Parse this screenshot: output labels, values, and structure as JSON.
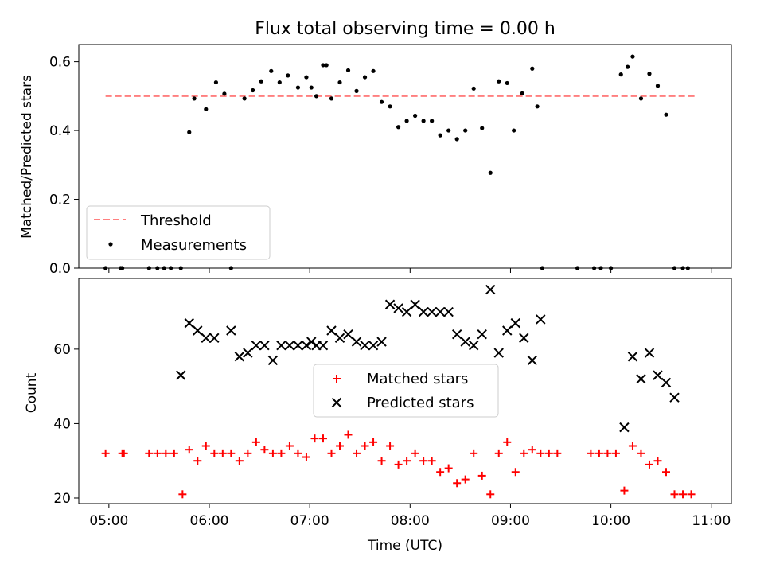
{
  "chart_data": [
    {
      "type": "scatter",
      "title": "Flux total observing time = 0.00 h",
      "xlabel": "",
      "ylabel": "Matched/Predicted stars",
      "ylim": [
        0.0,
        0.65
      ],
      "xlim": [
        "04:42",
        "11:12"
      ],
      "y_ticks": [
        "0.0",
        "0.2",
        "0.4",
        "0.6"
      ],
      "legend_position": "lower-left",
      "grid": false,
      "threshold": {
        "name": "Threshold",
        "y": 0.5,
        "x": [
          "04:58",
          "10:50"
        ],
        "color": "#ff7f7f",
        "style": "dashed"
      },
      "series": [
        {
          "name": "Measurements",
          "color": "#000000",
          "marker": "dot",
          "x": [
            "04:58",
            "05:07",
            "05:08",
            "05:24",
            "05:29",
            "05:33",
            "05:37",
            "05:43",
            "05:48",
            "05:51",
            "05:58",
            "06:04",
            "06:09",
            "06:13",
            "06:21",
            "06:26",
            "06:31",
            "06:37",
            "06:42",
            "06:47",
            "06:53",
            "06:58",
            "07:01",
            "07:04",
            "07:08",
            "07:10",
            "07:13",
            "07:18",
            "07:23",
            "07:28",
            "07:33",
            "07:38",
            "07:43",
            "07:48",
            "07:53",
            "07:58",
            "08:03",
            "08:08",
            "08:13",
            "08:18",
            "08:23",
            "08:28",
            "08:33",
            "08:38",
            "08:43",
            "08:48",
            "08:53",
            "08:58",
            "09:02",
            "09:07",
            "09:13",
            "09:16",
            "09:19",
            "09:40",
            "09:50",
            "09:54",
            "10:00",
            "10:06",
            "10:10",
            "10:13",
            "10:18",
            "10:23",
            "10:28",
            "10:33",
            "10:38",
            "10:43",
            "10:46"
          ],
          "y": [
            0.0,
            0.0,
            0.0,
            0.0,
            0.0,
            0.0,
            0.0,
            0.0,
            0.395,
            0.493,
            0.462,
            0.54,
            0.507,
            0.0,
            0.493,
            0.517,
            0.543,
            0.573,
            0.54,
            0.56,
            0.525,
            0.555,
            0.525,
            0.5,
            0.59,
            0.59,
            0.493,
            0.54,
            0.575,
            0.515,
            0.555,
            0.573,
            0.483,
            0.47,
            0.41,
            0.428,
            0.443,
            0.428,
            0.428,
            0.386,
            0.4,
            0.375,
            0.4,
            0.522,
            0.407,
            0.277,
            0.543,
            0.538,
            0.4,
            0.508,
            0.58,
            0.47,
            0.0,
            0.0,
            0.0,
            0.0,
            0.0,
            0.563,
            0.585,
            0.615,
            0.493,
            0.565,
            0.53,
            0.446,
            0.0,
            0.0,
            0.0
          ]
        }
      ]
    },
    {
      "type": "scatter",
      "title": "",
      "xlabel": "Time (UTC)",
      "ylabel": "Count",
      "ylim": [
        18.5,
        79
      ],
      "xlim": [
        "04:42",
        "11:12"
      ],
      "y_ticks": [
        "20",
        "40",
        "60"
      ],
      "x_ticks": [
        "05:00",
        "06:00",
        "07:00",
        "08:00",
        "09:00",
        "10:00",
        "11:00"
      ],
      "legend_position": "center",
      "grid": false,
      "series": [
        {
          "name": "Matched stars",
          "color": "#ff0000",
          "marker": "plus",
          "x": [
            "04:58",
            "05:08",
            "05:09",
            "05:24",
            "05:29",
            "05:34",
            "05:39",
            "05:44",
            "05:48",
            "05:53",
            "05:58",
            "06:03",
            "06:08",
            "06:13",
            "06:18",
            "06:23",
            "06:28",
            "06:33",
            "06:38",
            "06:43",
            "06:48",
            "06:53",
            "06:58",
            "07:03",
            "07:08",
            "07:13",
            "07:18",
            "07:23",
            "07:28",
            "07:33",
            "07:38",
            "07:43",
            "07:48",
            "07:53",
            "07:58",
            "08:03",
            "08:08",
            "08:13",
            "08:18",
            "08:23",
            "08:28",
            "08:33",
            "08:38",
            "08:43",
            "08:48",
            "08:53",
            "08:58",
            "09:03",
            "09:08",
            "09:13",
            "09:18",
            "09:23",
            "09:28",
            "09:48",
            "09:53",
            "09:58",
            "10:03",
            "10:08",
            "10:13",
            "10:18",
            "10:23",
            "10:28",
            "10:33",
            "10:38",
            "10:43",
            "10:48"
          ],
          "y": [
            32,
            32,
            32,
            32,
            32,
            32,
            32,
            21,
            33,
            30,
            34,
            32,
            32,
            32,
            30,
            32,
            35,
            33,
            32,
            32,
            34,
            32,
            31,
            36,
            36,
            32,
            34,
            37,
            32,
            34,
            35,
            30,
            34,
            29,
            30,
            32,
            30,
            30,
            27,
            28,
            24,
            25,
            32,
            26,
            21,
            32,
            35,
            27,
            32,
            33,
            32,
            32,
            32,
            32,
            32,
            32,
            32,
            22,
            34,
            32,
            29,
            30,
            27,
            21,
            21,
            21
          ]
        },
        {
          "name": "Predicted stars",
          "color": "#000000",
          "marker": "x",
          "x": [
            "05:43",
            "05:48",
            "05:53",
            "05:58",
            "06:03",
            "06:13",
            "06:18",
            "06:23",
            "06:28",
            "06:33",
            "06:38",
            "06:43",
            "06:48",
            "06:53",
            "06:58",
            "07:01",
            "07:04",
            "07:08",
            "07:13",
            "07:18",
            "07:23",
            "07:28",
            "07:33",
            "07:38",
            "07:43",
            "07:48",
            "07:53",
            "07:58",
            "08:03",
            "08:08",
            "08:13",
            "08:18",
            "08:23",
            "08:28",
            "08:33",
            "08:38",
            "08:43",
            "08:48",
            "08:53",
            "08:58",
            "09:03",
            "09:08",
            "09:13",
            "09:18",
            "10:08",
            "10:13",
            "10:18",
            "10:23",
            "10:28",
            "10:33",
            "10:38"
          ],
          "y": [
            53,
            67,
            65,
            63,
            63,
            65,
            58,
            59,
            61,
            61,
            57,
            61,
            61,
            61,
            61,
            62,
            61,
            61,
            65,
            63,
            64,
            62,
            61,
            61,
            62,
            72,
            71,
            70,
            72,
            70,
            70,
            70,
            70,
            64,
            62,
            61,
            64,
            76,
            59,
            65,
            67,
            63,
            57,
            68,
            39,
            58,
            52,
            59,
            53,
            51,
            47
          ]
        }
      ]
    }
  ]
}
